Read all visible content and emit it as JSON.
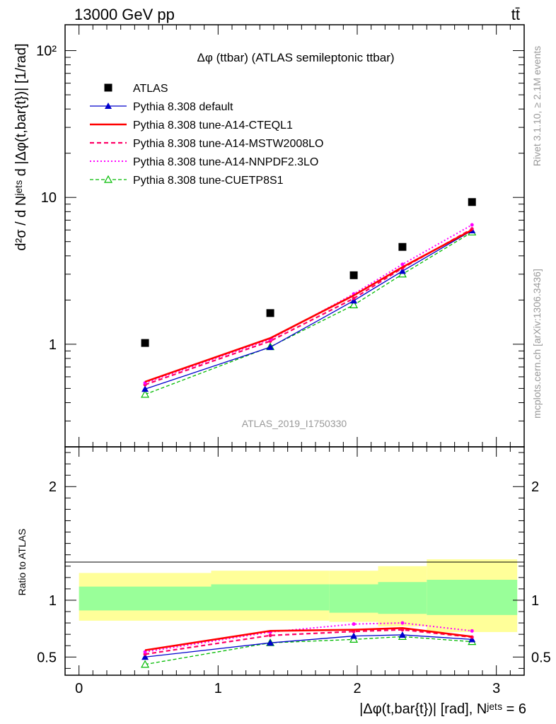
{
  "header": {
    "energy_label": "13000 GeV pp",
    "process_label": "tt̄",
    "plot_title": "Δφ (ttbar) (ATLAS semileptonic ttbar)",
    "analysis_id": "ATLAS_2019_I1750330",
    "side_rivet": "Rivet 3.1.10, ≥ 2.1M events",
    "side_mcplots": "mcplots.cern.ch [arXiv:1306.3436]"
  },
  "colors": {
    "band_outer": "#ffff99",
    "band_inner": "#99ff99",
    "atlas": "#000000",
    "default": "#0000cc",
    "a14_cteql1": "#ff0000",
    "a14_mstw": "#ff0066",
    "a14_nnpdf": "#ff00ff",
    "cuetp8s1": "#00bb00"
  },
  "chart_data": [
    {
      "panel": "main",
      "type": "scatter",
      "yscale": "log",
      "ylabel": "d²σ / d Nʲᵉᵗˢ d |Δφ(t,bar{t})| [1/rad]",
      "ylim": [
        0.2,
        150
      ],
      "ytick_labels": [
        "1",
        "10",
        "10²"
      ],
      "x": [
        0.475,
        1.375,
        1.975,
        2.325,
        2.825
      ],
      "series": [
        {
          "name": "ATLAS",
          "key": "atlas",
          "values": [
            1.02,
            1.63,
            2.95,
            4.6,
            9.3
          ]
        },
        {
          "name": "Pythia 8.308 default",
          "key": "default",
          "values": [
            0.495,
            0.955,
            1.98,
            3.15,
            5.95
          ]
        },
        {
          "name": "Pythia 8.308 tune-A14-CTEQL1",
          "key": "a14_cteql1",
          "values": [
            0.555,
            1.1,
            2.15,
            3.35,
            6.0
          ]
        },
        {
          "name": "Pythia 8.308 tune-A14-MSTW2008LO",
          "key": "a14_mstw",
          "values": [
            0.53,
            1.05,
            2.05,
            3.3,
            6.1
          ]
        },
        {
          "name": "Pythia 8.308 tune-A14-NNPDF2.3LO",
          "key": "a14_nnpdf",
          "values": [
            0.545,
            1.08,
            2.2,
            3.5,
            6.5
          ]
        },
        {
          "name": "Pythia 8.308 tune-CUETP8S1",
          "key": "cuetp8s1",
          "values": [
            0.455,
            0.96,
            1.85,
            3.0,
            5.8
          ]
        }
      ]
    },
    {
      "panel": "ratio",
      "type": "line",
      "ylabel": "Ratio to ATLAS",
      "xlabel": "|Δφ(t,bar{t})| [rad], Nʲᵉᵗˢ = 6",
      "ylim": [
        0.34,
        2.35
      ],
      "xlim": [
        -0.1,
        3.2
      ],
      "ytick_labels": [
        "0.5",
        "1",
        "2"
      ],
      "xtick_labels": [
        "0",
        "1",
        "2",
        "3"
      ],
      "band_bins": [
        0,
        0.95,
        1.8,
        2.15,
        2.5,
        3.15
      ],
      "band_inner": [
        [
          0.91,
          1.12
        ],
        [
          0.91,
          1.14
        ],
        [
          0.89,
          1.14
        ],
        [
          0.88,
          1.16
        ],
        [
          0.87,
          1.18
        ]
      ],
      "band_outer": [
        [
          0.82,
          1.24
        ],
        [
          0.82,
          1.26
        ],
        [
          0.81,
          1.26
        ],
        [
          0.77,
          1.3
        ],
        [
          0.72,
          1.36
        ]
      ],
      "x": [
        0.475,
        1.375,
        1.975,
        2.325,
        2.825
      ],
      "series": [
        {
          "name": "Pythia 8.308 default",
          "key": "default",
          "values": [
            0.5,
            0.625,
            0.685,
            0.695,
            0.655
          ]
        },
        {
          "name": "Pythia 8.308 tune-A14-CTEQL1",
          "key": "a14_cteql1",
          "values": [
            0.56,
            0.73,
            0.74,
            0.755,
            0.68
          ]
        },
        {
          "name": "Pythia 8.308 tune-A14-MSTW2008LO",
          "key": "a14_mstw",
          "values": [
            0.525,
            0.69,
            0.725,
            0.74,
            0.675
          ]
        },
        {
          "name": "Pythia 8.308 tune-A14-NNPDF2.3LO",
          "key": "a14_nnpdf",
          "values": [
            0.545,
            0.72,
            0.79,
            0.8,
            0.73
          ]
        },
        {
          "name": "Pythia 8.308 tune-CUETP8S1",
          "key": "cuetp8s1",
          "values": [
            0.435,
            0.625,
            0.655,
            0.68,
            0.635
          ]
        }
      ]
    }
  ]
}
